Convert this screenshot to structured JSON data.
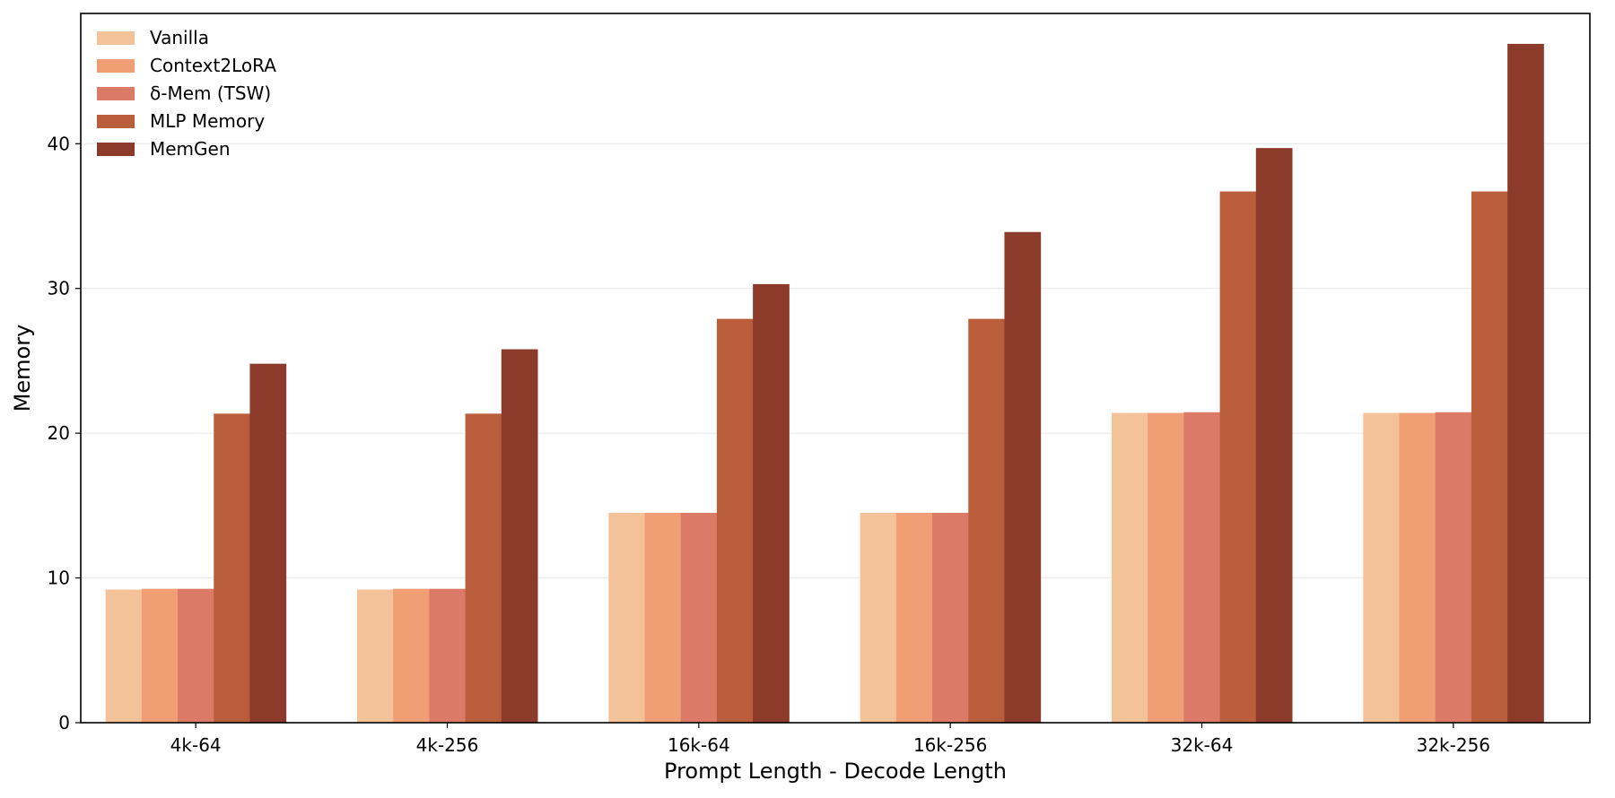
{
  "chart_data": {
    "type": "bar",
    "title": "",
    "xlabel": "Prompt Length - Decode Length",
    "ylabel": "Memory",
    "ylim": [
      0,
      49
    ],
    "yticks": [
      0,
      10,
      20,
      30,
      40
    ],
    "grid": "horizontal",
    "legend_position": "top-left",
    "categories": [
      "4k-64",
      "4k-256",
      "16k-64",
      "16k-256",
      "32k-64",
      "32k-256"
    ],
    "series": [
      {
        "name": "Vanilla",
        "color": "#f4c299",
        "values": [
          9.2,
          9.2,
          14.5,
          14.5,
          21.4,
          21.4
        ]
      },
      {
        "name": "Context2LoRA",
        "color": "#f09e74",
        "values": [
          9.25,
          9.25,
          14.5,
          14.5,
          21.4,
          21.4
        ]
      },
      {
        "name": "δ-Mem (TSW)",
        "color": "#dc7a68",
        "values": [
          9.25,
          9.25,
          14.5,
          14.5,
          21.45,
          21.45
        ]
      },
      {
        "name": "MLP Memory",
        "color": "#b95d3b",
        "values": [
          21.35,
          21.35,
          27.9,
          27.9,
          36.7,
          36.7
        ]
      },
      {
        "name": "MemGen",
        "color": "#8c3a29",
        "values": [
          24.8,
          25.8,
          30.3,
          33.9,
          39.7,
          46.9
        ]
      }
    ]
  }
}
